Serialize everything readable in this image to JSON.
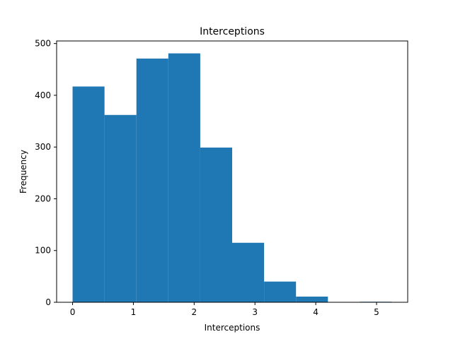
{
  "chart_data": {
    "type": "bar",
    "title": "Interceptions",
    "xlabel": "Interceptions",
    "ylabel": "Frequency",
    "bin_edges": [
      0,
      0.525,
      1.05,
      1.575,
      2.1,
      2.625,
      3.15,
      3.675,
      4.2,
      4.725,
      5.25
    ],
    "values": [
      417,
      362,
      471,
      481,
      299,
      115,
      40,
      11,
      0,
      1
    ],
    "color": "#1f77b4",
    "xlim": [
      -0.2625,
      5.5125
    ],
    "ylim": [
      0,
      505
    ],
    "xticks": [
      0,
      1,
      2,
      3,
      4,
      5
    ],
    "yticks": [
      0,
      100,
      200,
      300,
      400,
      500
    ],
    "grid": false,
    "legend": "none"
  }
}
